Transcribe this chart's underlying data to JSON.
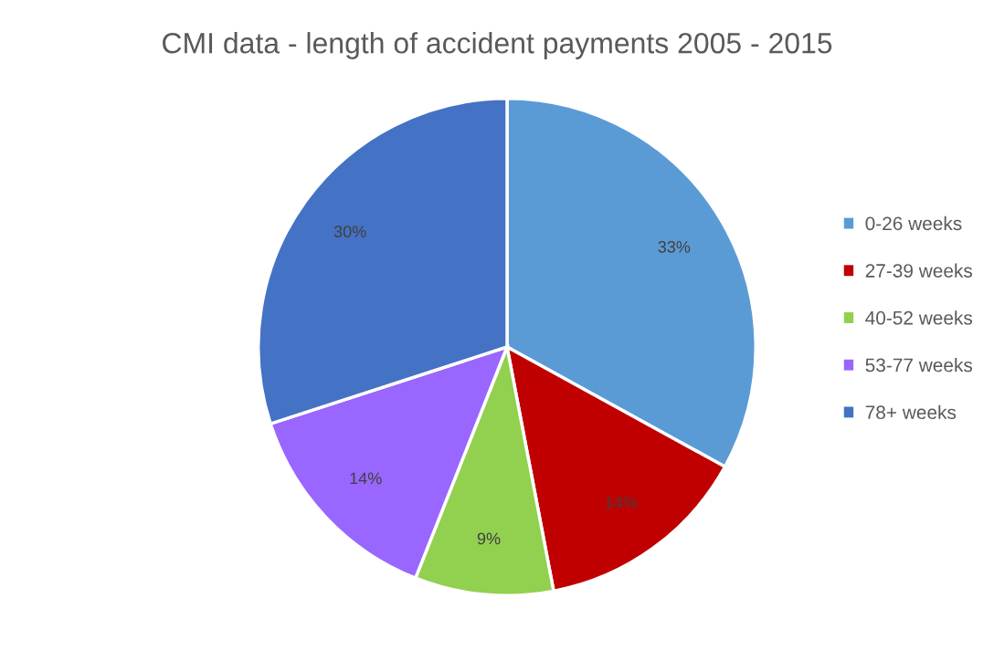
{
  "chart_data": {
    "type": "pie",
    "title": "CMI data - length of accident payments 2005 - 2015",
    "categories": [
      "0-26 weeks",
      "27-39 weeks",
      "40-52 weeks",
      "53-77 weeks",
      "78+ weeks"
    ],
    "values": [
      33,
      14,
      9,
      14,
      30
    ],
    "colors": [
      "#5b9bd5",
      "#c00000",
      "#92d050",
      "#9966ff",
      "#4472c4"
    ],
    "value_labels": [
      "33%",
      "14%",
      "9%",
      "14%",
      "30%"
    ],
    "legend": "right"
  }
}
